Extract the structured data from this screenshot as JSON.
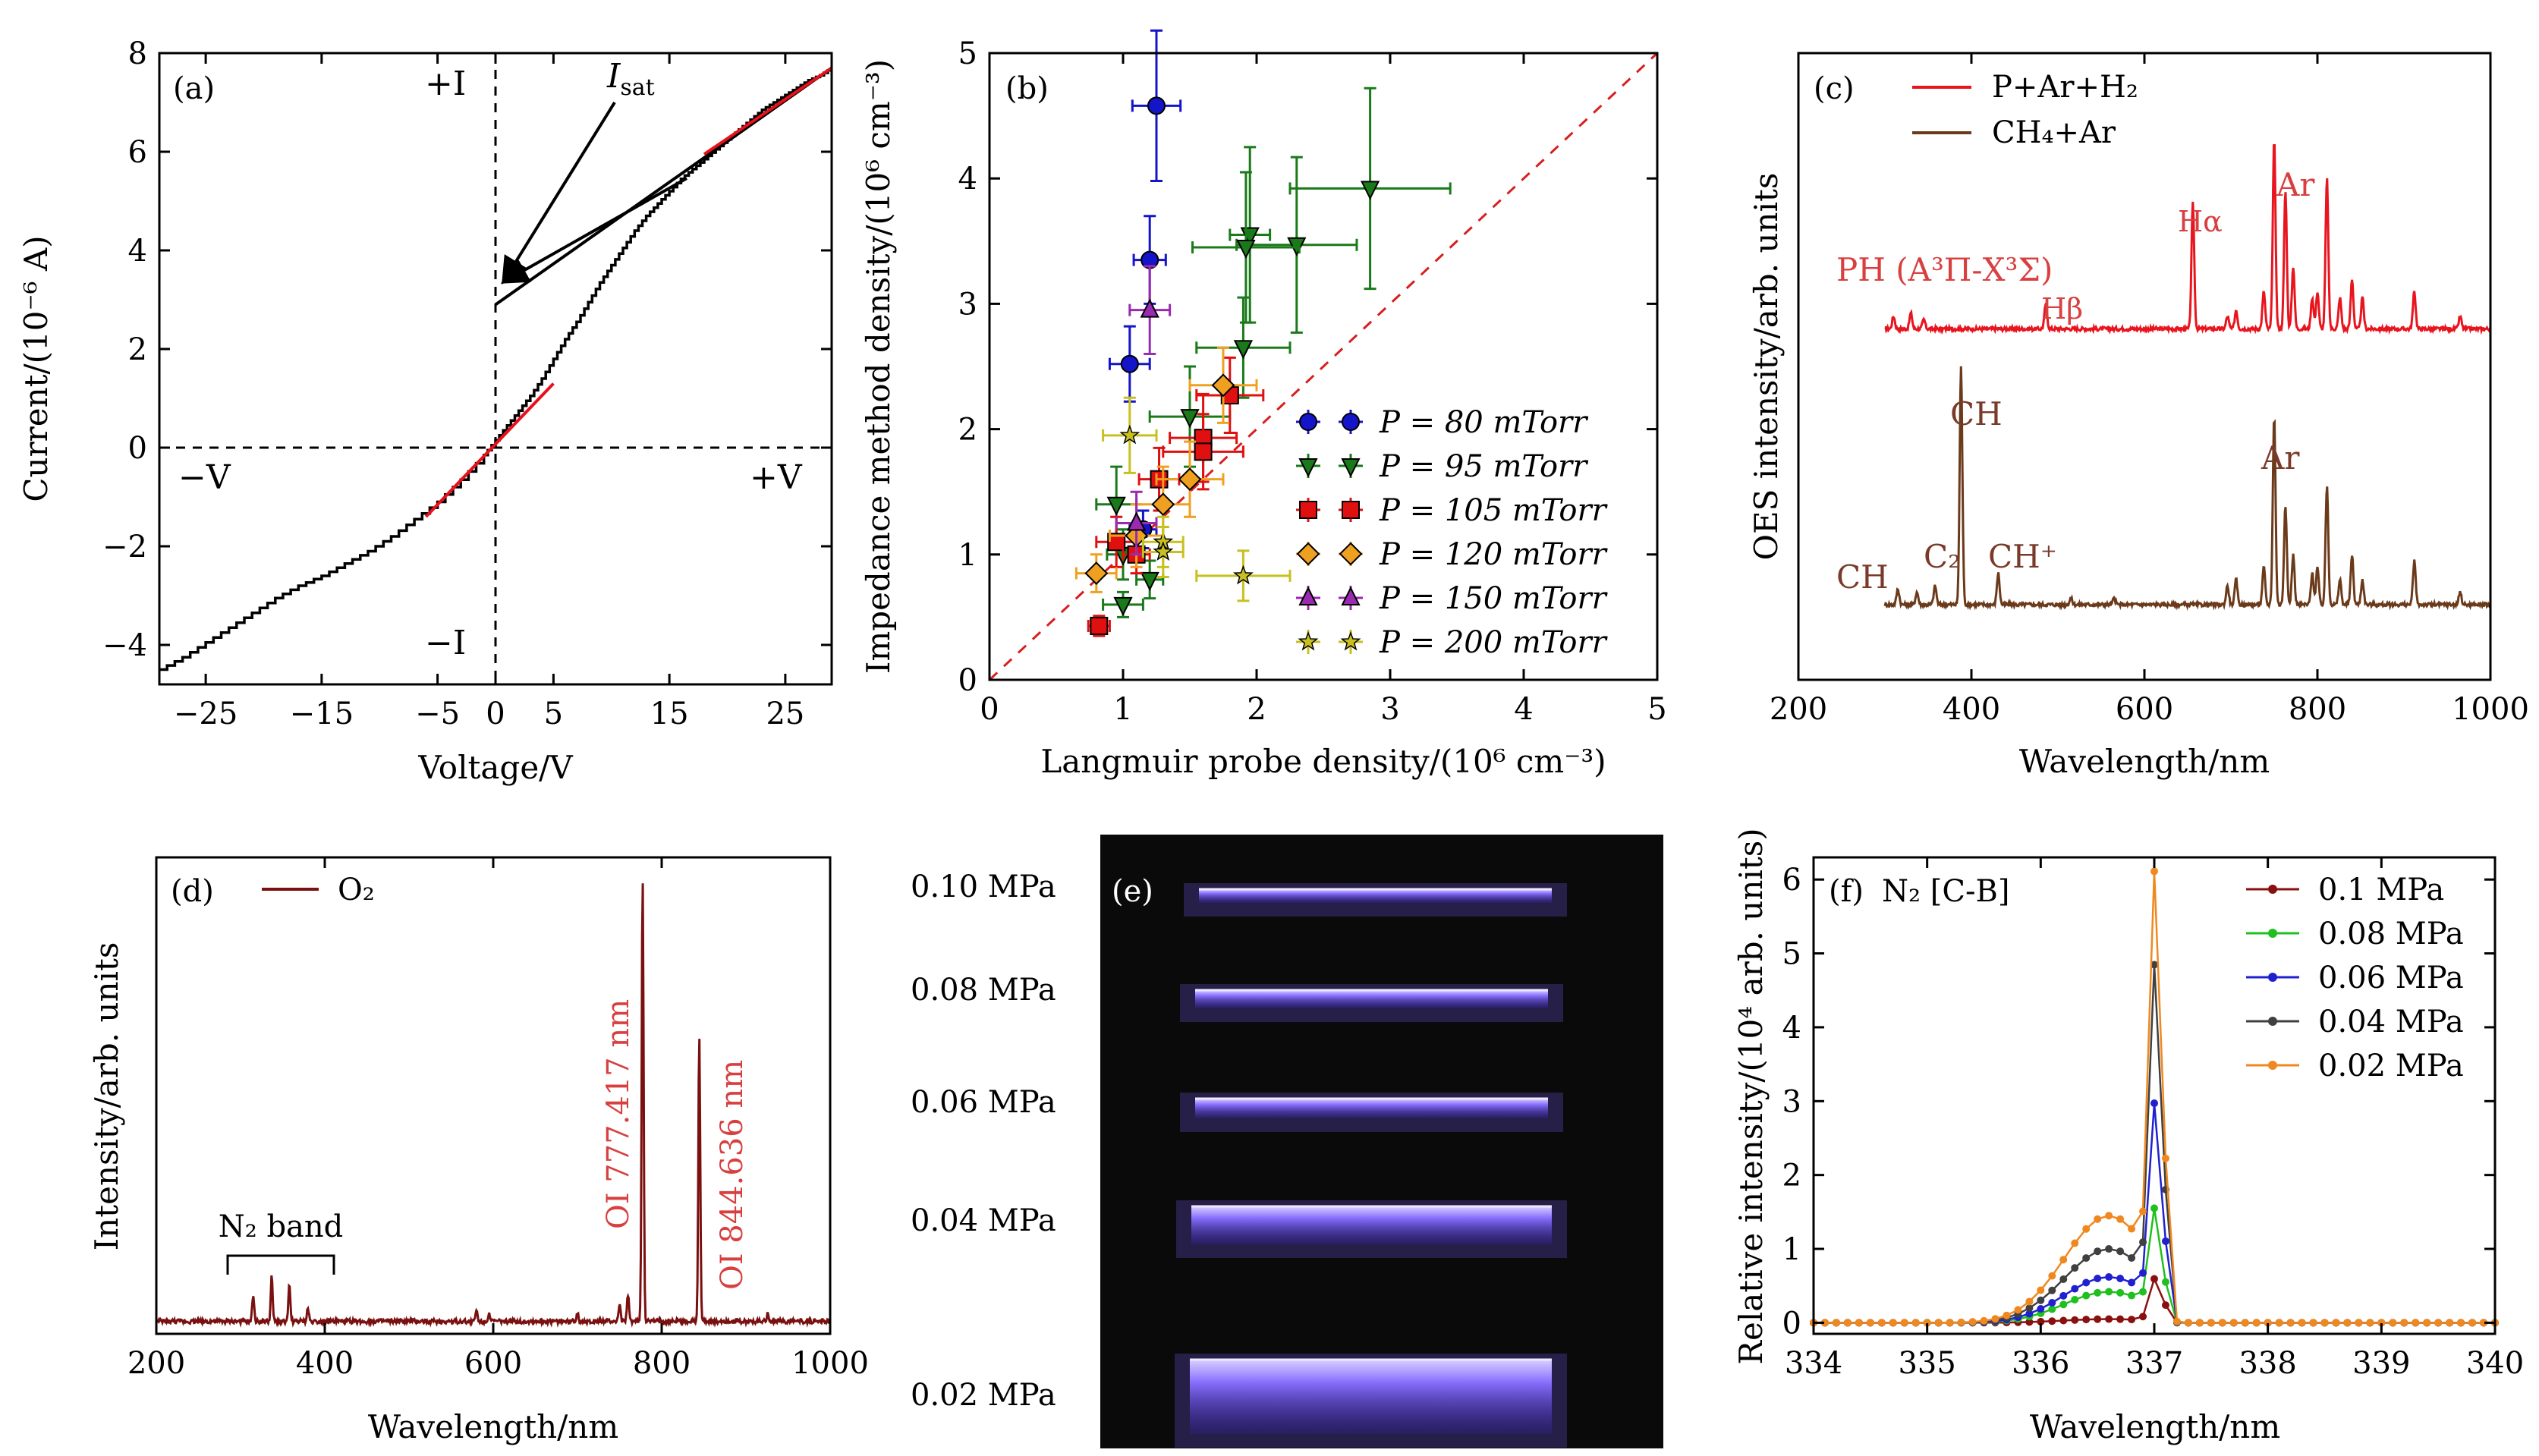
{
  "colors": {
    "fit_red": "#e8101a",
    "dash_red": "#d81e1e",
    "p80": "#1414c8",
    "p95": "#1a7a1a",
    "p105": "#e01010",
    "p120": "#f0a020",
    "p150": "#9a2ab0",
    "p200": "#c8c020",
    "oes_red": "#e8141e",
    "oes_brown": "#6b3a1a",
    "o2_line": "#7a1010",
    "ann_red": "#d84040",
    "f01": "#8a1010",
    "f008": "#20c020",
    "f006": "#2020d0",
    "f004": "#404040",
    "f002": "#f08820",
    "f002_env": "#c8b880",
    "photo_glow": "#7a60ff"
  },
  "chart_data": [
    {
      "panel": "a",
      "type": "line",
      "panel_label": "(a)",
      "xlabel": "Voltage/V",
      "ylabel": "Current/(10⁻⁶ A)",
      "xlim": [
        -29,
        29
      ],
      "ylim": [
        -4.8,
        8
      ],
      "xticks": [
        "−25",
        "−15",
        "−5",
        "0",
        "5",
        "15",
        "25"
      ],
      "xtick_values": [
        -25,
        -15,
        -5,
        0,
        5,
        15,
        25
      ],
      "yticks": [
        "−4",
        "−2",
        "0",
        "2",
        "4",
        "6",
        "8"
      ],
      "ytick_values": [
        -4,
        -2,
        0,
        2,
        4,
        6,
        8
      ],
      "curve": {
        "x": [
          -29,
          -27,
          -25,
          -23,
          -21,
          -19,
          -17,
          -15,
          -13,
          -11,
          -9,
          -7,
          -5,
          -3,
          -1,
          0,
          1,
          2,
          3,
          4,
          5,
          6,
          7,
          8,
          9,
          10,
          11,
          12,
          13,
          14,
          15,
          16,
          17,
          18,
          19,
          20,
          21,
          22,
          23,
          24,
          25,
          26,
          27,
          28,
          29
        ],
        "y": [
          -4.5,
          -4.25,
          -3.95,
          -3.65,
          -3.35,
          -3.05,
          -2.8,
          -2.6,
          -2.35,
          -2.1,
          -1.8,
          -1.45,
          -1.1,
          -0.65,
          -0.15,
          0.15,
          0.45,
          0.75,
          1.05,
          1.4,
          1.8,
          2.2,
          2.55,
          2.95,
          3.35,
          3.7,
          4.05,
          4.4,
          4.7,
          4.95,
          5.2,
          5.45,
          5.65,
          5.85,
          6.05,
          6.25,
          6.45,
          6.65,
          6.85,
          7.0,
          7.15,
          7.3,
          7.45,
          7.55,
          7.7
        ]
      },
      "fits": [
        {
          "x": [
            -6,
            5
          ],
          "y": [
            -1.4,
            1.3
          ]
        },
        {
          "x": [
            18,
            29
          ],
          "y": [
            5.95,
            7.7
          ]
        }
      ],
      "tangent": {
        "x": [
          0,
          29
        ],
        "y": [
          2.9,
          7.7
        ]
      },
      "dashed_lines": {
        "x0": 0,
        "y0": 0
      },
      "quadrant_labels": {
        "plus_i": "+I",
        "minus_i": "−I",
        "minus_v": "−V",
        "plus_v": "+V"
      },
      "isat_label": "I",
      "isat_sub": "sat"
    },
    {
      "panel": "b",
      "type": "scatter",
      "panel_label": "(b)",
      "xlabel": "Langmuir probe density/(10⁶ cm⁻³)",
      "ylabel": "Impedance method density/(10⁶ cm⁻³)",
      "xlim": [
        0,
        5
      ],
      "ylim": [
        0,
        5
      ],
      "xticks": [
        "0",
        "1",
        "2",
        "3",
        "4",
        "5"
      ],
      "yticks": [
        "0",
        "1",
        "2",
        "3",
        "4",
        "5"
      ],
      "diagonal": [
        [
          0,
          0
        ],
        [
          5,
          5
        ]
      ],
      "series": [
        {
          "name": "P = 80 mTorr",
          "marker": "circle",
          "color": "#1414c8",
          "points": [
            [
              1.25,
              4.58,
              0.18,
              0.6
            ],
            [
              1.2,
              3.35,
              0.12,
              0.35
            ],
            [
              1.05,
              2.52,
              0.15,
              0.3
            ],
            [
              1.15,
              1.2,
              0.1,
              0.15
            ]
          ]
        },
        {
          "name": "P = 95 mTorr",
          "marker": "triangle-down",
          "color": "#1a7a1a",
          "points": [
            [
              2.85,
              3.92,
              0.6,
              0.8
            ],
            [
              1.95,
              3.55,
              0.15,
              0.7
            ],
            [
              2.3,
              3.47,
              0.45,
              0.7
            ],
            [
              1.92,
              3.45,
              0.4,
              0.6
            ],
            [
              1.9,
              2.65,
              0.35,
              0.4
            ],
            [
              1.5,
              2.1,
              0.3,
              0.4
            ],
            [
              0.95,
              1.4,
              0.15,
              0.3
            ],
            [
              1.0,
              1.0,
              0.12,
              0.2
            ],
            [
              1.2,
              0.8,
              0.1,
              0.15
            ],
            [
              1.0,
              0.6,
              0.15,
              0.1
            ]
          ]
        },
        {
          "name": "P = 105 mTorr",
          "marker": "square",
          "color": "#e01010",
          "points": [
            [
              1.8,
              2.27,
              0.25,
              0.3
            ],
            [
              1.6,
              1.93,
              0.25,
              0.35
            ],
            [
              1.6,
              1.82,
              0.3,
              0.3
            ],
            [
              1.27,
              1.6,
              0.15,
              0.25
            ],
            [
              0.95,
              1.1,
              0.15,
              0.2
            ],
            [
              1.1,
              1.0,
              0.1,
              0.15
            ],
            [
              0.82,
              0.43,
              0.08,
              0.08
            ]
          ]
        },
        {
          "name": "P = 120 mTorr",
          "marker": "diamond",
          "color": "#f0a020",
          "points": [
            [
              1.75,
              2.35,
              0.25,
              0.3
            ],
            [
              1.5,
              1.6,
              0.25,
              0.3
            ],
            [
              1.3,
              1.4,
              0.2,
              0.3
            ],
            [
              1.1,
              1.15,
              0.2,
              0.25
            ],
            [
              0.8,
              0.85,
              0.15,
              0.15
            ]
          ]
        },
        {
          "name": "P = 150 mTorr",
          "marker": "triangle-up",
          "color": "#9a2ab0",
          "points": [
            [
              1.2,
              2.95,
              0.15,
              0.35
            ],
            [
              1.1,
              1.25,
              0.15,
              0.25
            ]
          ]
        },
        {
          "name": "P = 200 mTorr",
          "marker": "star",
          "color": "#c8c020",
          "points": [
            [
              1.05,
              1.95,
              0.2,
              0.3
            ],
            [
              1.3,
              1.1,
              0.15,
              0.2
            ],
            [
              1.3,
              1.02,
              0.15,
              0.2
            ],
            [
              1.9,
              0.83,
              0.35,
              0.2
            ]
          ]
        }
      ]
    },
    {
      "panel": "c",
      "type": "line",
      "panel_label": "(c)",
      "xlabel": "Wavelength/nm",
      "ylabel": "OES intensity/arb. units",
      "xlim": [
        200,
        1000
      ],
      "xticks": [
        "200",
        "400",
        "600",
        "800",
        "1000"
      ],
      "legend": [
        "P+Ar+H₂",
        "CH₄+Ar"
      ],
      "series": [
        {
          "name": "P+Ar+H₂",
          "baseline": 0.56,
          "peaks": [
            [
              310,
              0.02
            ],
            [
              330,
              0.025
            ],
            [
              345,
              0.015
            ],
            [
              486,
              0.04
            ],
            [
              656,
              0.2
            ],
            [
              696,
              0.02
            ],
            [
              706,
              0.03
            ],
            [
              738,
              0.06
            ],
            [
              750,
              0.3
            ],
            [
              763,
              0.22
            ],
            [
              772,
              0.1
            ],
            [
              794,
              0.05
            ],
            [
              800,
              0.06
            ],
            [
              811,
              0.24
            ],
            [
              826,
              0.05
            ],
            [
              840,
              0.08
            ],
            [
              852,
              0.05
            ],
            [
              912,
              0.06
            ],
            [
              965,
              0.02
            ]
          ]
        },
        {
          "name": "CH₄+Ar",
          "baseline": 0.12,
          "peaks": [
            [
              315,
              0.025
            ],
            [
              337,
              0.02
            ],
            [
              358,
              0.03
            ],
            [
              388,
              0.38
            ],
            [
              431,
              0.05
            ],
            [
              515,
              0.01
            ],
            [
              565,
              0.01
            ],
            [
              696,
              0.03
            ],
            [
              706,
              0.04
            ],
            [
              738,
              0.06
            ],
            [
              750,
              0.3
            ],
            [
              763,
              0.16
            ],
            [
              772,
              0.08
            ],
            [
              794,
              0.05
            ],
            [
              800,
              0.06
            ],
            [
              811,
              0.19
            ],
            [
              826,
              0.04
            ],
            [
              840,
              0.08
            ],
            [
              852,
              0.04
            ],
            [
              912,
              0.07
            ],
            [
              965,
              0.02
            ]
          ]
        }
      ],
      "annotations": {
        "ph_label": "PH (A³Π-X³Σ)",
        "h_beta": "Hβ",
        "h_alpha": "Hα",
        "ar_top": "Ar",
        "ch_left": "CH",
        "c2": "C₂",
        "ch_top": "CH",
        "ch_plus": "CH⁺",
        "ar_bottom": "Ar"
      }
    },
    {
      "panel": "d",
      "type": "line",
      "panel_label": "(d)",
      "xlabel": "Wavelength/nm",
      "ylabel": "Intensity/arb. units",
      "xlim": [
        200,
        1000
      ],
      "xticks": [
        "200",
        "400",
        "600",
        "800",
        "1000"
      ],
      "legend": [
        "O₂"
      ],
      "peaks": [
        [
          315,
          0.06
        ],
        [
          337,
          0.1
        ],
        [
          358,
          0.08
        ],
        [
          380,
          0.03
        ],
        [
          580,
          0.025
        ],
        [
          595,
          0.02
        ],
        [
          700,
          0.02
        ],
        [
          750,
          0.04
        ],
        [
          760,
          0.06
        ],
        [
          777.417,
          1.0
        ],
        [
          844.636,
          0.64
        ],
        [
          926,
          0.02
        ]
      ],
      "annotations": {
        "n2_band": "N₂ band",
        "oi1": "OI 777.417 nm",
        "oi2": "OI 844.636 nm"
      }
    },
    {
      "panel": "e",
      "type": "image",
      "panel_label": "(e)",
      "pressure_labels": [
        "0.10 MPa",
        "0.08 MPa",
        "0.06 MPa",
        "0.04 MPa",
        "0.02 MPa"
      ]
    },
    {
      "panel": "f",
      "type": "line",
      "panel_label": "(f)",
      "title": "N₂ [C-B]",
      "xlabel": "Wavelength/nm",
      "ylabel": "Relative intensity/(10⁴ arb. units)",
      "xlim": [
        334,
        340
      ],
      "ylim": [
        0,
        6.3
      ],
      "xticks": [
        "334",
        "335",
        "336",
        "337",
        "338",
        "339",
        "340"
      ],
      "yticks": [
        "0",
        "1",
        "2",
        "3",
        "4",
        "5",
        "6"
      ],
      "series": [
        {
          "name": "0.1 MPa",
          "color": "#8a1010",
          "peak": 0.65,
          "bump": 0.05
        },
        {
          "name": "0.08 MPa",
          "color": "#20c020",
          "peak": 1.5,
          "bump": 0.42
        },
        {
          "name": "0.06 MPa",
          "color": "#2020d0",
          "peak": 3.0,
          "bump": 0.62
        },
        {
          "name": "0.04 MPa",
          "color": "#404040",
          "peak": 4.9,
          "bump": 1.0
        },
        {
          "name": "0.02 MPa",
          "color": "#f08820",
          "peak": 6.05,
          "bump": 1.45
        }
      ]
    }
  ]
}
